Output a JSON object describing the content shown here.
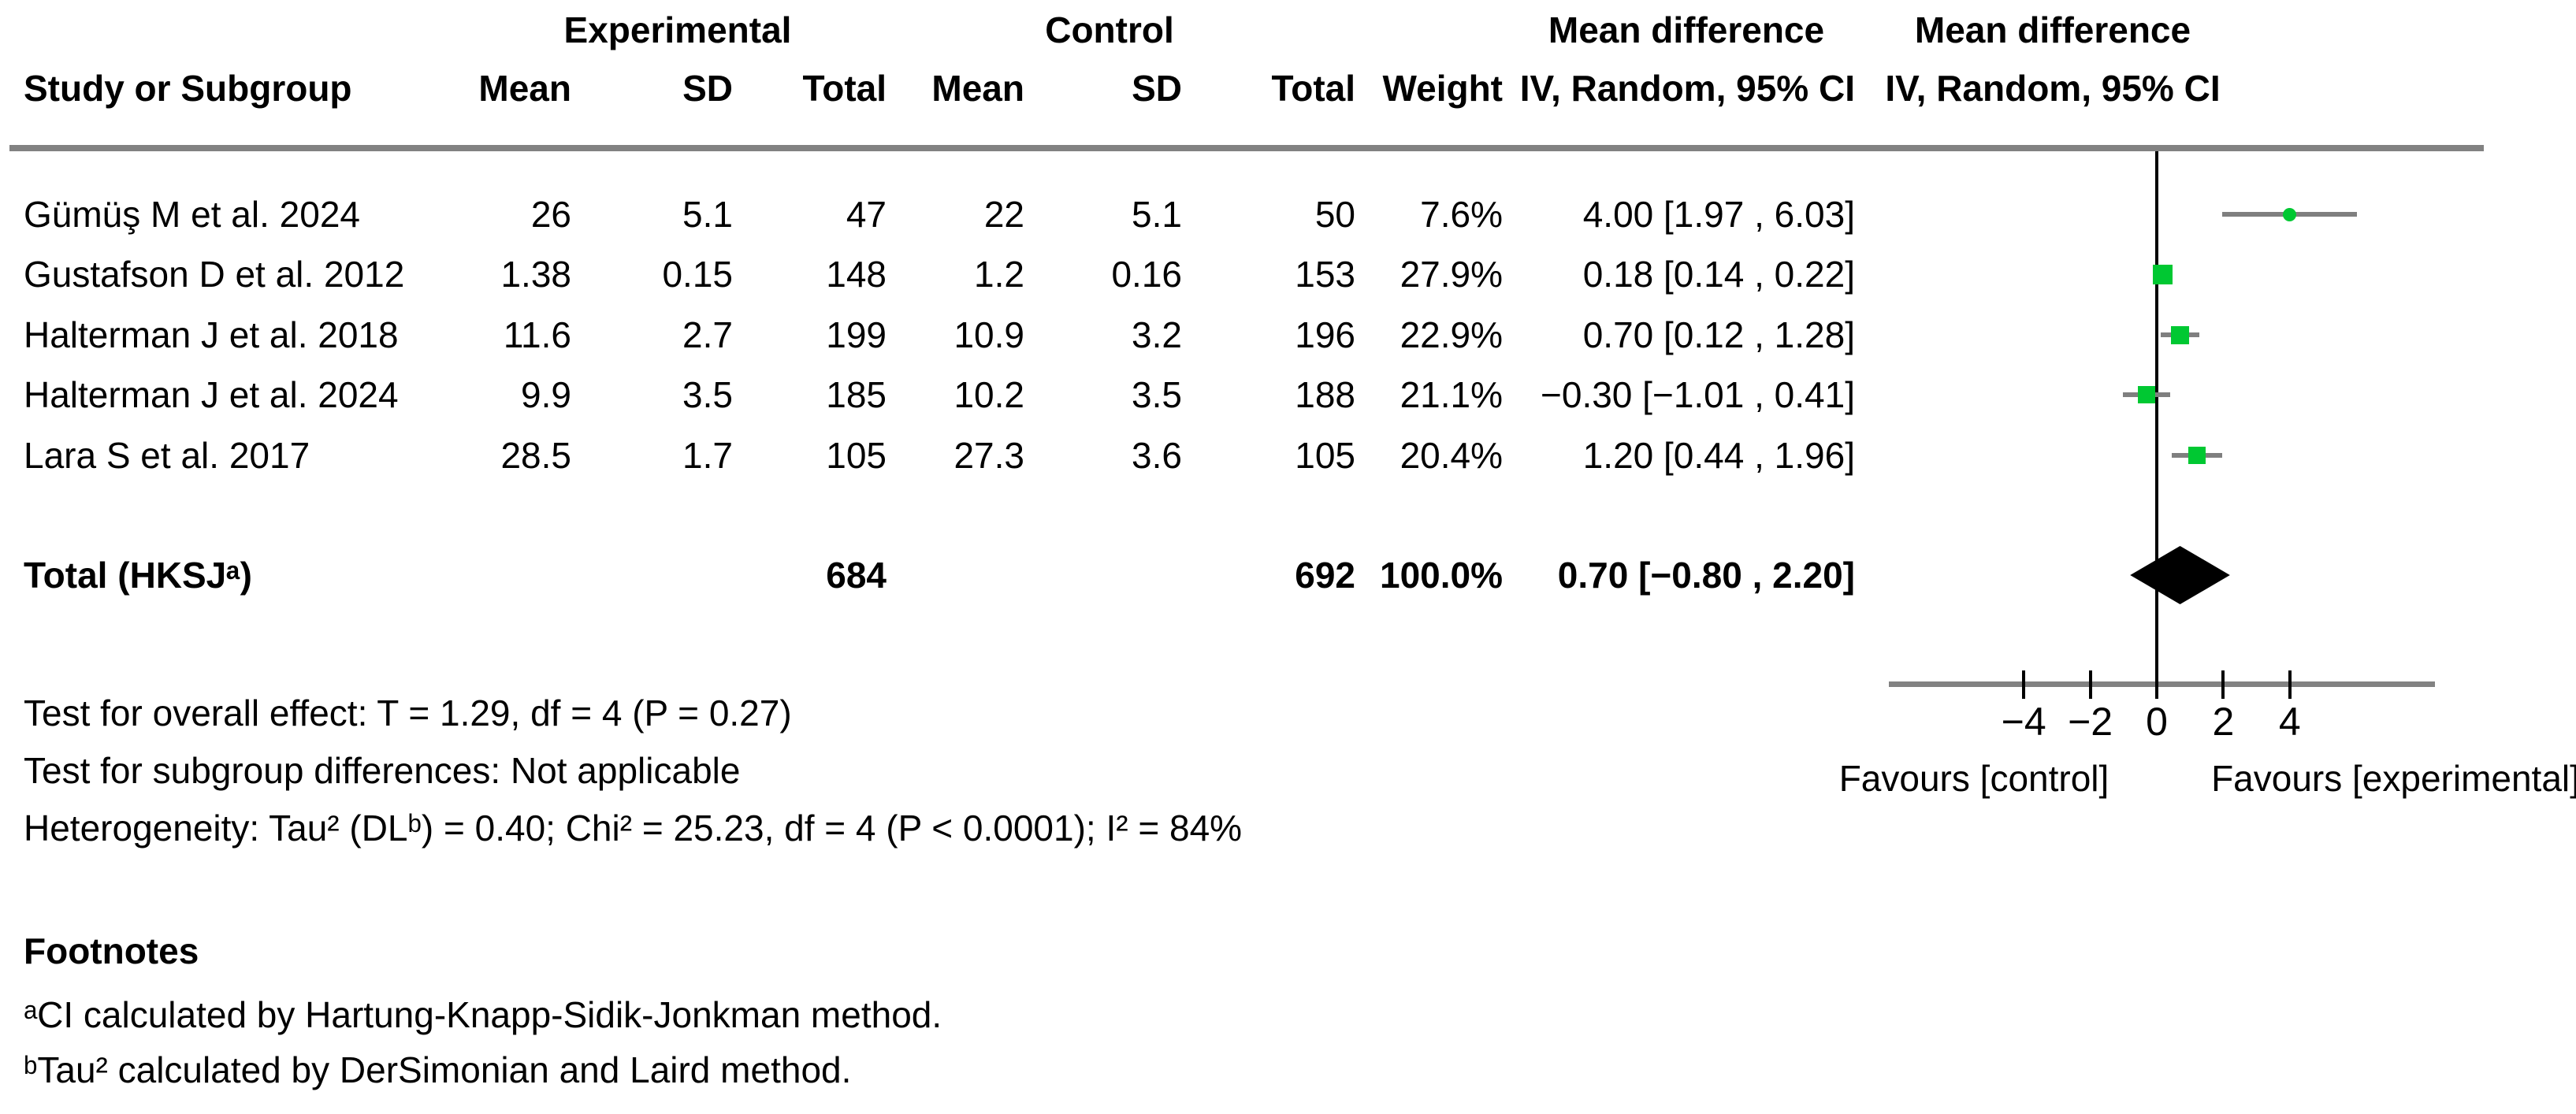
{
  "header": {
    "group_experimental": "Experimental",
    "group_control": "Control",
    "group_mean_difference_text": "Mean difference",
    "group_mean_difference_plot": "Mean difference",
    "col_study": "Study or Subgroup",
    "col_exp_mean": "Mean",
    "col_exp_sd": "SD",
    "col_exp_total": "Total",
    "col_ctrl_mean": "Mean",
    "col_ctrl_sd": "SD",
    "col_ctrl_total": "Total",
    "col_weight": "Weight",
    "col_ci_text": "IV, Random, 95% CI",
    "col_ci_plot": "IV, Random, 95% CI"
  },
  "chart_data": {
    "type": "forest",
    "effect_measure": "Mean difference, IV, Random, 95% CI",
    "studies": [
      {
        "name": "Gümüş M et al. 2024",
        "exp_mean": "26",
        "exp_sd": "5.1",
        "exp_total": "47",
        "ctrl_mean": "22",
        "ctrl_sd": "5.1",
        "ctrl_total": "50",
        "weight": "7.6%",
        "ci_text": "4.00 [1.97 , 6.03]",
        "estimate": 4.0,
        "ci_low": 1.97,
        "ci_high": 6.03,
        "weight_value": 7.6,
        "marker_size": 17,
        "marker_shape": "circle"
      },
      {
        "name": "Gustafson D et al. 2012",
        "exp_mean": "1.38",
        "exp_sd": "0.15",
        "exp_total": "148",
        "ctrl_mean": "1.2",
        "ctrl_sd": "0.16",
        "ctrl_total": "153",
        "weight": "27.9%",
        "ci_text": "0.18 [0.14 , 0.22]",
        "estimate": 0.18,
        "ci_low": 0.14,
        "ci_high": 0.22,
        "weight_value": 27.9,
        "marker_size": 25,
        "marker_shape": "square"
      },
      {
        "name": "Halterman J et al. 2018",
        "exp_mean": "11.6",
        "exp_sd": "2.7",
        "exp_total": "199",
        "ctrl_mean": "10.9",
        "ctrl_sd": "3.2",
        "ctrl_total": "196",
        "weight": "22.9%",
        "ci_text": "0.70 [0.12 , 1.28]",
        "estimate": 0.7,
        "ci_low": 0.12,
        "ci_high": 1.28,
        "weight_value": 22.9,
        "marker_size": 23,
        "marker_shape": "square"
      },
      {
        "name": "Halterman J et al. 2024",
        "exp_mean": "9.9",
        "exp_sd": "3.5",
        "exp_total": "185",
        "ctrl_mean": "10.2",
        "ctrl_sd": "3.5",
        "ctrl_total": "188",
        "weight": "21.1%",
        "ci_text": "−0.30 [−1.01 , 0.41]",
        "estimate": -0.3,
        "ci_low": -1.01,
        "ci_high": 0.41,
        "weight_value": 21.1,
        "marker_size": 22,
        "marker_shape": "square"
      },
      {
        "name": "Lara S et al. 2017",
        "exp_mean": "28.5",
        "exp_sd": "1.7",
        "exp_total": "105",
        "ctrl_mean": "27.3",
        "ctrl_sd": "3.6",
        "ctrl_total": "105",
        "weight": "20.4%",
        "ci_text": "1.20 [0.44 , 1.96]",
        "estimate": 1.2,
        "ci_low": 0.44,
        "ci_high": 1.96,
        "weight_value": 20.4,
        "marker_size": 22,
        "marker_shape": "square"
      }
    ],
    "total": {
      "label": "Total (HKSJᵃ)",
      "exp_total": "684",
      "ctrl_total": "692",
      "weight": "100.0%",
      "ci_text": "0.70 [−0.80 , 2.20]",
      "estimate": 0.7,
      "ci_low": -0.8,
      "ci_high": 2.2
    },
    "axis": {
      "ticks": [
        -4,
        -2,
        0,
        2,
        4
      ],
      "tick_labels": [
        "−4",
        "−2",
        "0",
        "2",
        "4"
      ],
      "xmin": -8,
      "xmax": 8.3,
      "zero_line": 0,
      "xlabel_left": "Favours [control]",
      "xlabel_right": "Favours [experimental]"
    },
    "colors": {
      "marker": "#00C832",
      "ci_line": "#7f7f7f",
      "diamond": "#000000",
      "rule": "#828282",
      "zero_line": "#000000"
    }
  },
  "stats": {
    "overall_effect": "Test for overall effect: T = 1.29, df = 4 (P = 0.27)",
    "subgroup": "Test for subgroup differences: Not applicable",
    "heterogeneity": "Heterogeneity: Tau² (DLᵇ) = 0.40; Chi² = 25.23, df = 4 (P < 0.0001); I² = 84%"
  },
  "footnotes": {
    "title": "Footnotes",
    "a": "ᵃCI calculated by Hartung-Knapp-Sidik-Jonkman method.",
    "b": "ᵇTau² calculated by DerSimonian and Laird method."
  }
}
